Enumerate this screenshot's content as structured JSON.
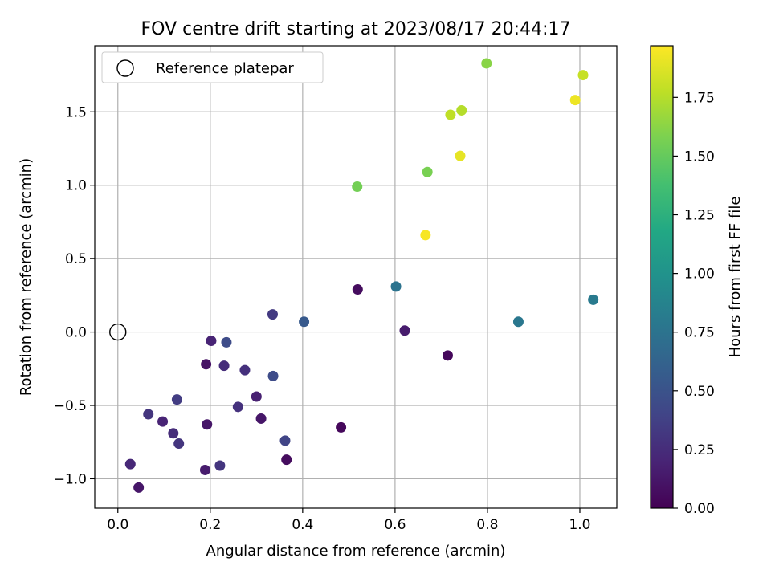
{
  "chart_data": {
    "type": "scatter",
    "title": "FOV centre drift starting at 2023/08/17 20:44:17",
    "xlabel": "Angular distance from reference (arcmin)",
    "ylabel": "Rotation from reference (arcmin)",
    "xlim": [
      -0.05,
      1.08
    ],
    "ylim": [
      -1.2,
      1.95
    ],
    "xticks": [
      0.0,
      0.2,
      0.4,
      0.6,
      0.8,
      1.0
    ],
    "xtick_labels": [
      "0.0",
      "0.2",
      "0.4",
      "0.6",
      "0.8",
      "1.0"
    ],
    "yticks": [
      -1.0,
      -0.5,
      0.0,
      0.5,
      1.0,
      1.5
    ],
    "ytick_labels": [
      "−1.0",
      "−0.5",
      "0.0",
      "0.5",
      "1.0",
      "1.5"
    ],
    "grid": true,
    "legend": {
      "position": "top-left",
      "entries": [
        "Reference platepar"
      ]
    },
    "reference_point": {
      "x": 0.0,
      "y": 0.0,
      "label": "Reference platepar"
    },
    "colorbar": {
      "label": "Hours from first FF file",
      "colormap": "viridis",
      "range": [
        0.0,
        1.97
      ],
      "ticks": [
        0.0,
        0.25,
        0.5,
        0.75,
        1.0,
        1.25,
        1.5,
        1.75
      ],
      "tick_labels": [
        "0.00",
        "0.25",
        "0.50",
        "0.75",
        "1.00",
        "1.25",
        "1.50",
        "1.75"
      ]
    },
    "points": [
      {
        "x": 0.045,
        "y": -1.06,
        "c": 0.12
      },
      {
        "x": 0.027,
        "y": -0.9,
        "c": 0.22
      },
      {
        "x": 0.066,
        "y": -0.56,
        "c": 0.3
      },
      {
        "x": 0.097,
        "y": -0.61,
        "c": 0.2
      },
      {
        "x": 0.12,
        "y": -0.69,
        "c": 0.25
      },
      {
        "x": 0.128,
        "y": -0.46,
        "c": 0.35
      },
      {
        "x": 0.132,
        "y": -0.76,
        "c": 0.3
      },
      {
        "x": 0.189,
        "y": -0.94,
        "c": 0.15
      },
      {
        "x": 0.191,
        "y": -0.22,
        "c": 0.1
      },
      {
        "x": 0.193,
        "y": -0.63,
        "c": 0.12
      },
      {
        "x": 0.202,
        "y": -0.06,
        "c": 0.2
      },
      {
        "x": 0.221,
        "y": -0.91,
        "c": 0.3
      },
      {
        "x": 0.23,
        "y": -0.23,
        "c": 0.25
      },
      {
        "x": 0.235,
        "y": -0.07,
        "c": 0.45
      },
      {
        "x": 0.26,
        "y": -0.51,
        "c": 0.28
      },
      {
        "x": 0.275,
        "y": -0.26,
        "c": 0.27
      },
      {
        "x": 0.3,
        "y": -0.44,
        "c": 0.18
      },
      {
        "x": 0.31,
        "y": -0.59,
        "c": 0.12
      },
      {
        "x": 0.335,
        "y": 0.12,
        "c": 0.33
      },
      {
        "x": 0.336,
        "y": -0.3,
        "c": 0.45
      },
      {
        "x": 0.362,
        "y": -0.74,
        "c": 0.4
      },
      {
        "x": 0.365,
        "y": -0.87,
        "c": 0.06
      },
      {
        "x": 0.403,
        "y": 0.07,
        "c": 0.55
      },
      {
        "x": 0.483,
        "y": -0.65,
        "c": 0.04
      },
      {
        "x": 0.519,
        "y": 0.29,
        "c": 0.06
      },
      {
        "x": 0.602,
        "y": 0.31,
        "c": 0.75
      },
      {
        "x": 0.621,
        "y": 0.01,
        "c": 0.15
      },
      {
        "x": 0.714,
        "y": -0.16,
        "c": 0.04
      },
      {
        "x": 0.867,
        "y": 0.07,
        "c": 0.78
      },
      {
        "x": 1.029,
        "y": 0.22,
        "c": 0.8
      },
      {
        "x": 0.518,
        "y": 0.99,
        "c": 1.55
      },
      {
        "x": 0.67,
        "y": 1.09,
        "c": 1.57
      },
      {
        "x": 0.666,
        "y": 0.66,
        "c": 1.95
      },
      {
        "x": 0.741,
        "y": 1.2,
        "c": 1.9
      },
      {
        "x": 0.72,
        "y": 1.48,
        "c": 1.78
      },
      {
        "x": 0.744,
        "y": 1.51,
        "c": 1.75
      },
      {
        "x": 0.798,
        "y": 1.83,
        "c": 1.62
      },
      {
        "x": 0.99,
        "y": 1.58,
        "c": 1.92
      },
      {
        "x": 1.007,
        "y": 1.75,
        "c": 1.8
      }
    ]
  }
}
